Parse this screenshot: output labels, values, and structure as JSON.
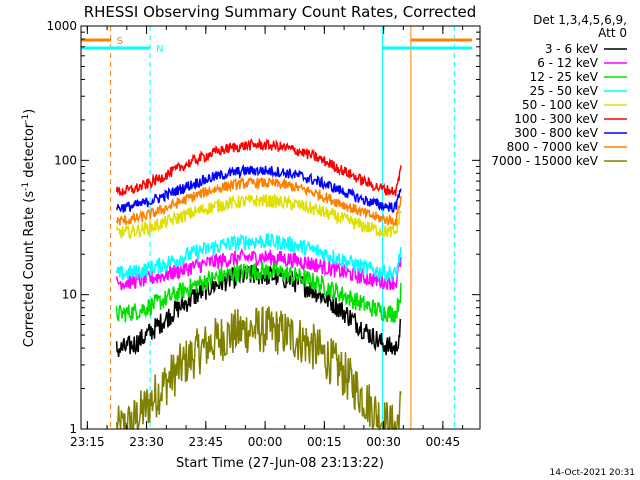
{
  "chart_data": {
    "type": "line",
    "title": "RHESSI Observing Summary Count Rates, Corrected",
    "xlabel": "Start Time (27-Jun-08 23:13:22)",
    "ylabel_main": "Corrected Count Rate (s",
    "ylabel_sup1": "-1",
    "ylabel_mid": " detector",
    "ylabel_sup2": "-1",
    "ylabel_end": ")",
    "y_scale": "log",
    "ylim": [
      1,
      1000
    ],
    "y_ticks": [
      {
        "label": "1",
        "value": 1
      },
      {
        "label": "10",
        "value": 10
      },
      {
        "label": "100",
        "value": 100
      },
      {
        "label": "1000",
        "value": 1000
      }
    ],
    "x_unit": "minutes after 23:13:22",
    "xlim": [
      0,
      101
    ],
    "x_ticks": [
      {
        "label": "23:15",
        "minutes": 1.6
      },
      {
        "label": "23:30",
        "minutes": 16.6
      },
      {
        "label": "23:45",
        "minutes": 31.6
      },
      {
        "label": "00:00",
        "minutes": 46.6
      },
      {
        "label": "00:15",
        "minutes": 61.6
      },
      {
        "label": "00:30",
        "minutes": 76.6
      },
      {
        "label": "00:45",
        "minutes": 91.6
      }
    ],
    "legend_header": [
      "Det 1,3,4,5,6,9,",
      "Att 0"
    ],
    "legend_placement": "right",
    "series": [
      {
        "name": "3 - 6 keV",
        "color": "#000000",
        "level": 14,
        "depth": 0.72,
        "noise": 0.08
      },
      {
        "name": "6 - 12 keV",
        "color": "#ff00ff",
        "level": 19,
        "depth": 0.35,
        "noise": 0.06
      },
      {
        "name": "12 - 25 keV",
        "color": "#00e000",
        "level": 15,
        "depth": 0.52,
        "noise": 0.07
      },
      {
        "name": "25 - 50 keV",
        "color": "#00ffff",
        "level": 25,
        "depth": 0.43,
        "noise": 0.06
      },
      {
        "name": "50 - 100 keV",
        "color": "#e0e000",
        "level": 50,
        "depth": 0.42,
        "noise": 0.05
      },
      {
        "name": "100 - 300 keV",
        "color": "#ff0000",
        "level": 130,
        "depth": 0.55,
        "noise": 0.04
      },
      {
        "name": "300 - 800 keV",
        "color": "#0000ff",
        "level": 84,
        "depth": 0.47,
        "noise": 0.04
      },
      {
        "name": "800 - 7000 keV",
        "color": "#ff8000",
        "level": 68,
        "depth": 0.48,
        "noise": 0.04
      },
      {
        "name": "7000 - 15000 keV",
        "color": "#808000",
        "level": 5.5,
        "depth": 0.82,
        "noise": 0.18
      }
    ],
    "flag_bars": [
      {
        "label": "S",
        "color": "#ff8000",
        "segments": [
          [
            0,
            7.5
          ],
          [
            83.5,
            99
          ]
        ]
      },
      {
        "label": "N",
        "color": "#00ffff",
        "segments": [
          [
            0,
            17.5
          ],
          [
            76.3,
            99
          ]
        ]
      }
    ],
    "vertical_markers": [
      {
        "minutes": 0,
        "color": "#00ffff",
        "style": "solid"
      },
      {
        "minutes": 7.5,
        "color": "#ff8000",
        "style": "dashed"
      },
      {
        "minutes": 17.5,
        "color": "#00ffff",
        "style": "dashed"
      },
      {
        "minutes": 76.3,
        "color": "#00ffff",
        "style": "solid"
      },
      {
        "minutes": 83.5,
        "color": "#ff8000",
        "style": "solid"
      },
      {
        "minutes": 94.5,
        "color": "#00ffff",
        "style": "dashed"
      }
    ],
    "data_range_minutes": [
      9,
      81
    ]
  },
  "footer_timestamp": "14-Oct-2021 20:31"
}
